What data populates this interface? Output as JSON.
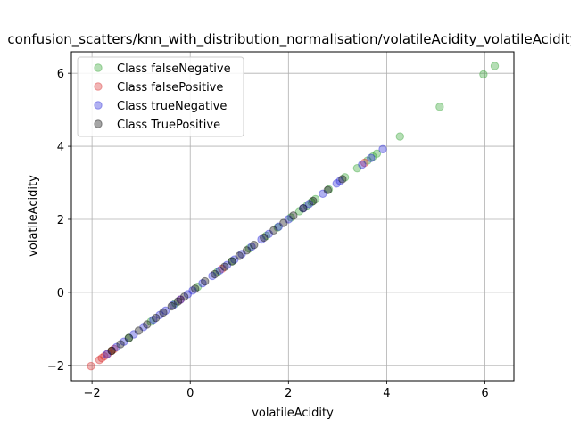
{
  "chart_data": {
    "type": "scatter",
    "title": "confusion_scatters/knn_with_distribution_normalisation/volatileAcidity_volatileAcidity",
    "xlabel": "volatileAcidity",
    "ylabel": "volatileAcidity",
    "xlim": [
      -2.42,
      6.59
    ],
    "ylim": [
      -2.42,
      6.59
    ],
    "xticks": [
      -2,
      0,
      2,
      4,
      6
    ],
    "yticks": [
      -2,
      0,
      2,
      4,
      6
    ],
    "tick_labels_x": [
      "−2",
      "0",
      "2",
      "4",
      "6"
    ],
    "tick_labels_y": [
      "−2",
      "0",
      "2",
      "4",
      "6"
    ],
    "grid": true,
    "legend_position": "top-left",
    "marker_alpha": 0.35,
    "series": [
      {
        "name": "Class falseNegative",
        "color": "#2ca02c",
        "x": [
          6.2,
          5.97,
          5.08,
          4.27,
          3.8,
          3.72,
          3.61,
          3.4,
          3.15,
          2.82,
          2.55,
          2.47,
          2.38,
          2.22,
          2.05,
          1.78,
          1.55,
          1.2,
          0.85,
          0.55,
          0.15,
          -0.3,
          -0.8,
          -1.25,
          -1.6
        ],
        "y": [
          6.2,
          5.97,
          5.08,
          4.27,
          3.8,
          3.72,
          3.61,
          3.4,
          3.15,
          2.82,
          2.55,
          2.47,
          2.38,
          2.22,
          2.05,
          1.78,
          1.55,
          1.2,
          0.85,
          0.55,
          0.15,
          -0.3,
          -0.8,
          -1.25,
          -1.6
        ]
      },
      {
        "name": "Class falsePositive",
        "color": "#d62728",
        "x": [
          -2.02,
          -1.85,
          -1.8,
          -1.75,
          -1.68,
          -1.6,
          -1.55,
          3.55,
          0.65,
          -0.2
        ],
        "y": [
          -2.02,
          -1.85,
          -1.8,
          -1.75,
          -1.68,
          -1.6,
          -1.55,
          3.55,
          0.65,
          -0.2
        ]
      },
      {
        "name": "Class trueNegative",
        "color": "#1f1fd6",
        "x": [
          -1.7,
          -1.5,
          -1.35,
          -1.15,
          -0.95,
          -0.75,
          -0.62,
          -0.5,
          -0.35,
          -0.2,
          -0.05,
          0.05,
          0.25,
          0.45,
          0.6,
          0.75,
          0.9,
          1.05,
          1.25,
          1.45,
          1.6,
          1.8,
          2.0,
          2.3,
          2.42,
          2.7,
          2.98,
          3.05,
          3.5,
          3.68,
          3.92
        ],
        "y": [
          -1.7,
          -1.5,
          -1.35,
          -1.15,
          -0.95,
          -0.75,
          -0.62,
          -0.5,
          -0.35,
          -0.2,
          -0.05,
          0.05,
          0.25,
          0.45,
          0.6,
          0.75,
          0.9,
          1.05,
          1.25,
          1.45,
          1.6,
          1.8,
          2.0,
          2.3,
          2.42,
          2.7,
          2.98,
          3.05,
          3.5,
          3.68,
          3.92
        ]
      },
      {
        "name": "Class TruePositive",
        "color": "#000000",
        "x": [
          -1.6,
          -1.42,
          -1.25,
          -1.05,
          -0.88,
          -0.7,
          -0.55,
          -0.38,
          -0.25,
          -0.12,
          0.1,
          0.3,
          0.5,
          0.7,
          0.85,
          1.0,
          1.15,
          1.3,
          1.5,
          1.7,
          1.9,
          2.1,
          2.3,
          2.5,
          2.8,
          3.1
        ],
        "y": [
          -1.6,
          -1.42,
          -1.25,
          -1.05,
          -0.88,
          -0.7,
          -0.55,
          -0.38,
          -0.25,
          -0.12,
          0.1,
          0.3,
          0.5,
          0.7,
          0.85,
          1.0,
          1.15,
          1.3,
          1.5,
          1.7,
          1.9,
          2.1,
          2.3,
          2.5,
          2.8,
          3.1
        ]
      }
    ]
  }
}
